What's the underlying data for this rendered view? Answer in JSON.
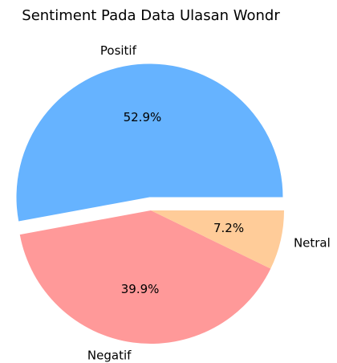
{
  "chart_data": {
    "type": "pie",
    "title": "Sentiment Pada Data Ulasan Wondr",
    "categories": [
      "Positif",
      "Negatif",
      "Netral"
    ],
    "values": [
      52.9,
      39.9,
      7.2
    ],
    "value_labels": [
      "52.9%",
      "39.9%",
      "7.2%"
    ],
    "colors": [
      "#66b3ff",
      "#ff9999",
      "#ffcc99"
    ],
    "explode": [
      0.1,
      0,
      0
    ]
  }
}
